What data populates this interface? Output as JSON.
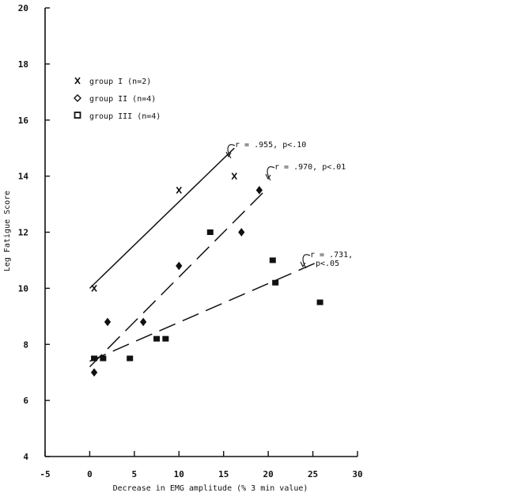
{
  "chart_data": {
    "type": "scatter",
    "xlabel": "Decrease in EMG amplitude (% 3 min value)",
    "ylabel": "Leg Fatigue Score",
    "xlim": [
      -5,
      30
    ],
    "ylim": [
      4,
      20
    ],
    "x_ticks": [
      {
        "value": -5,
        "label": "-5"
      },
      {
        "value": 0,
        "label": "0"
      },
      {
        "value": 5,
        "label": "5"
      },
      {
        "value": 10,
        "label": "10"
      },
      {
        "value": 15,
        "label": "15"
      },
      {
        "value": 20,
        "label": "20"
      },
      {
        "value": 25,
        "label": "25"
      },
      {
        "value": 30,
        "label": "30"
      }
    ],
    "y_ticks": [
      {
        "value": 4,
        "label": "4"
      },
      {
        "value": 6,
        "label": "6"
      },
      {
        "value": 8,
        "label": "8"
      },
      {
        "value": 10,
        "label": "10"
      },
      {
        "value": 12,
        "label": "12"
      },
      {
        "value": 14,
        "label": "14"
      },
      {
        "value": 16,
        "label": "16"
      },
      {
        "value": 18,
        "label": "18"
      },
      {
        "value": 20,
        "label": "20"
      }
    ],
    "grid": false,
    "legend_position": "top-left",
    "series": [
      {
        "name": "group I (n=2)",
        "marker": "x",
        "points": [
          [
            0.5,
            10.0
          ],
          [
            10.0,
            13.5
          ],
          [
            16.2,
            14.0
          ]
        ],
        "fit": {
          "style": "solid",
          "from": [
            0.0,
            10.0
          ],
          "to": [
            16.2,
            15.0
          ]
        },
        "annotation": [
          "r = .955, p<.10"
        ]
      },
      {
        "name": "group II (n=4)",
        "marker": "diamond",
        "points": [
          [
            0.5,
            7.0
          ],
          [
            2.0,
            8.8
          ],
          [
            6.0,
            8.8
          ],
          [
            10.0,
            10.8
          ],
          [
            17.0,
            12.0
          ],
          [
            19.0,
            13.5
          ]
        ],
        "fit": {
          "style": "dashed",
          "from": [
            0.0,
            7.2
          ],
          "to": [
            20.0,
            13.6
          ]
        },
        "annotation": [
          "r = .970, p<.01"
        ]
      },
      {
        "name": "group III (n=4)",
        "marker": "square",
        "points": [
          [
            0.5,
            7.5
          ],
          [
            1.5,
            7.5
          ],
          [
            4.5,
            7.5
          ],
          [
            7.5,
            8.2
          ],
          [
            8.5,
            8.2
          ],
          [
            13.5,
            12.0
          ],
          [
            20.5,
            11.0
          ],
          [
            20.8,
            10.2
          ],
          [
            25.8,
            9.5
          ]
        ],
        "fit": {
          "style": "dashed",
          "from": [
            0.0,
            7.4
          ],
          "to": [
            26.0,
            11.0
          ]
        },
        "annotation": [
          "r = .731,",
          "p<.05"
        ]
      }
    ]
  }
}
